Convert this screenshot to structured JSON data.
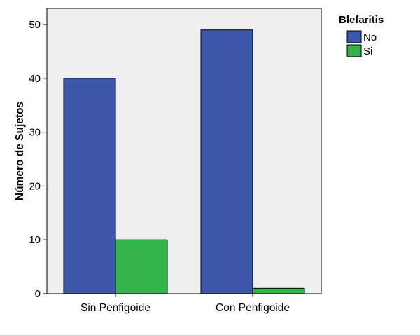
{
  "chart_data": {
    "type": "bar",
    "title": "",
    "xlabel": "",
    "ylabel": "Número de Sujetos",
    "categories": [
      "Sin Penfigoide",
      "Con Penfigoide"
    ],
    "series": [
      {
        "name": "No",
        "values": [
          40,
          49
        ],
        "color": "#3C56A8"
      },
      {
        "name": "Si",
        "values": [
          10,
          1
        ],
        "color": "#33B44A"
      }
    ],
    "ylim": [
      0,
      53
    ],
    "yticks": [
      0,
      10,
      20,
      30,
      40,
      50
    ],
    "grid": false,
    "legend": {
      "title": "Blefaritis",
      "placement": "top-right"
    },
    "plot_background": "#EFEFEF"
  }
}
